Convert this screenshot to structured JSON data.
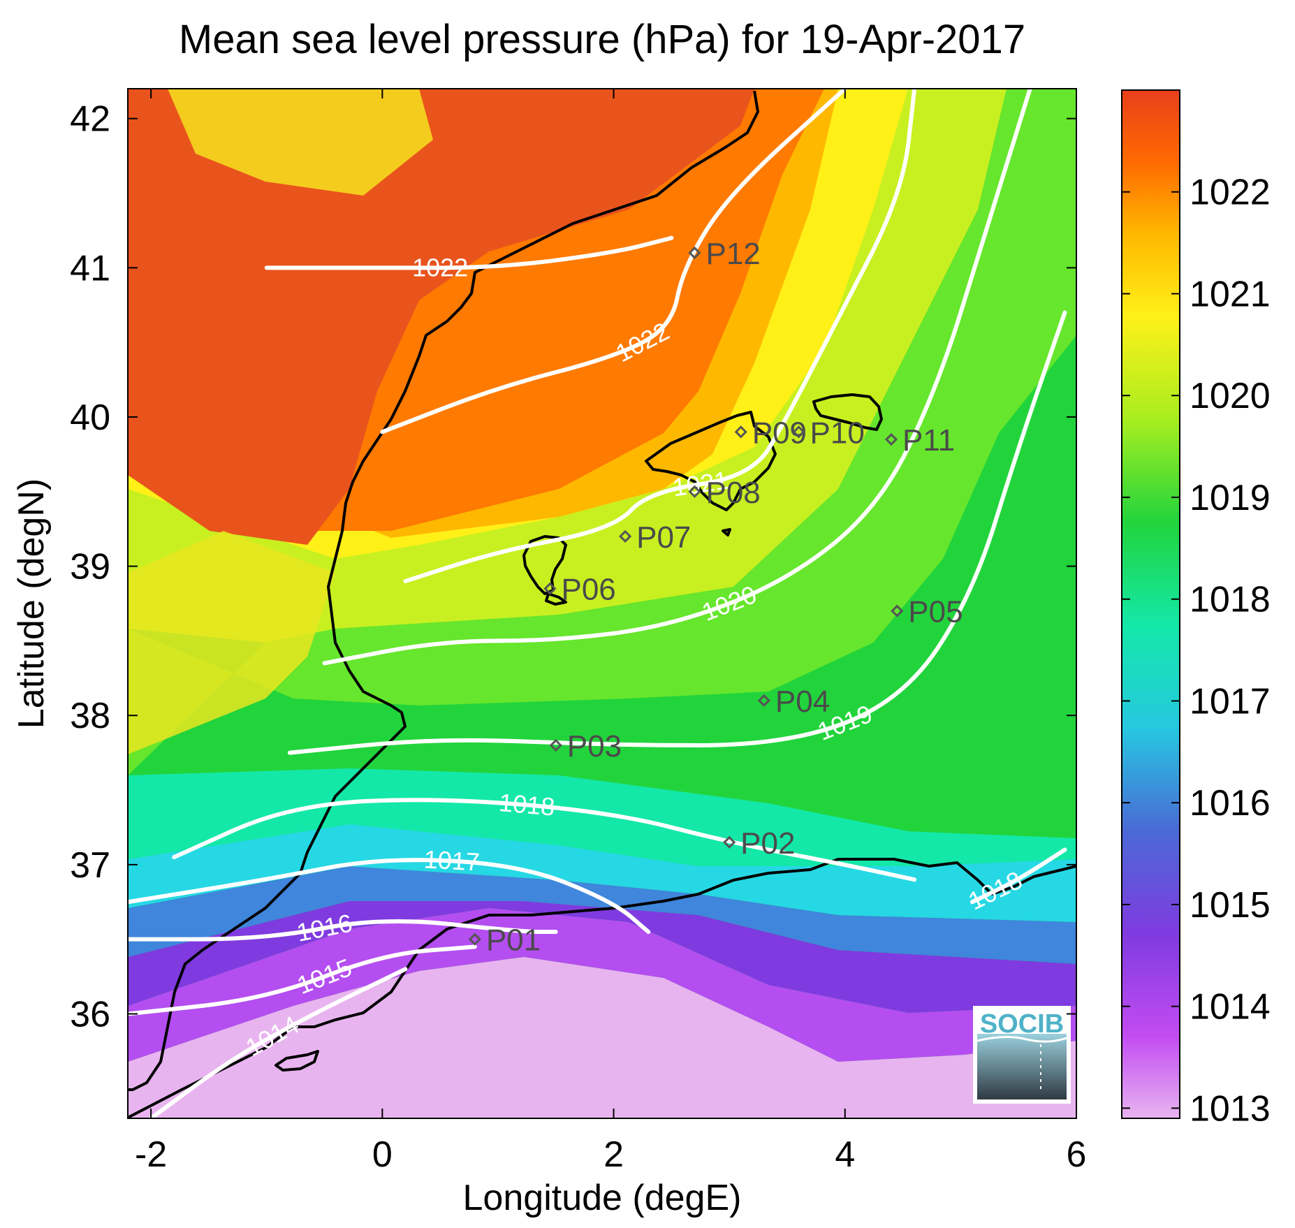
{
  "chart_data": {
    "type": "heatmap",
    "title": "Mean sea level pressure (hPa) for 19-Apr-2017",
    "xlabel": "Longitude (degE)",
    "ylabel": "Latitude (degN)",
    "xlim": [
      -2.2,
      6.0
    ],
    "ylim": [
      35.3,
      42.2
    ],
    "xticks": [
      -2,
      0,
      2,
      4,
      6
    ],
    "yticks": [
      36,
      37,
      38,
      39,
      40,
      41,
      42
    ],
    "colorbar": {
      "range": [
        1012.9,
        1023.0
      ],
      "ticks": [
        1013,
        1014,
        1015,
        1016,
        1017,
        1018,
        1019,
        1020,
        1021,
        1022
      ],
      "colors": [
        "#e8b4ef",
        "#c24cf2",
        "#7f3be0",
        "#4a6ad6",
        "#26c8e0",
        "#14e8a8",
        "#22d43c",
        "#a8ee20",
        "#fff018",
        "#ffb800",
        "#ff6a00",
        "#e8401c"
      ]
    },
    "contours": [
      {
        "level": 1022,
        "label": "1022",
        "points": [
          [
            -1.0,
            41.0
          ],
          [
            0.0,
            41.0
          ],
          [
            1.0,
            41.0
          ],
          [
            2.0,
            41.1
          ],
          [
            2.5,
            41.2
          ]
        ]
      },
      {
        "level": 1022,
        "label": "1022",
        "points": [
          [
            0.0,
            39.9
          ],
          [
            1.0,
            40.2
          ],
          [
            2.0,
            40.4
          ],
          [
            2.5,
            40.6
          ],
          [
            2.6,
            41.0
          ],
          [
            3.0,
            41.5
          ],
          [
            4.0,
            42.2
          ]
        ]
      },
      {
        "level": 1021,
        "label": "1021",
        "points": [
          [
            0.2,
            38.9
          ],
          [
            1.0,
            39.1
          ],
          [
            2.0,
            39.25
          ],
          [
            2.3,
            39.5
          ],
          [
            3.2,
            39.6
          ],
          [
            3.5,
            40.0
          ],
          [
            3.9,
            40.6
          ],
          [
            4.5,
            41.5
          ],
          [
            4.6,
            42.2
          ]
        ]
      },
      {
        "level": 1020,
        "label": "1020",
        "points": [
          [
            -0.5,
            38.35
          ],
          [
            0.5,
            38.5
          ],
          [
            1.5,
            38.5
          ],
          [
            2.5,
            38.6
          ],
          [
            3.5,
            38.9
          ],
          [
            4.3,
            39.4
          ],
          [
            4.8,
            40.2
          ],
          [
            5.2,
            41.2
          ],
          [
            5.6,
            42.2
          ]
        ]
      },
      {
        "level": 1019,
        "label": "1019",
        "points": [
          [
            -0.8,
            37.75
          ],
          [
            0.5,
            37.85
          ],
          [
            2.0,
            37.8
          ],
          [
            3.5,
            37.8
          ],
          [
            4.5,
            38.1
          ],
          [
            5.1,
            38.8
          ],
          [
            5.5,
            39.8
          ],
          [
            5.9,
            40.7
          ]
        ]
      },
      {
        "level": 1018,
        "label": "1018",
        "points": [
          [
            -1.8,
            37.05
          ],
          [
            -0.8,
            37.4
          ],
          [
            0.5,
            37.45
          ],
          [
            2.0,
            37.35
          ],
          [
            3.0,
            37.15
          ],
          [
            4.0,
            37.0
          ],
          [
            4.6,
            36.9
          ]
        ]
      },
      {
        "level": 1018,
        "label": "1018",
        "points": [
          [
            5.1,
            36.75
          ],
          [
            5.5,
            36.9
          ],
          [
            5.9,
            37.1
          ]
        ]
      },
      {
        "level": 1017,
        "label": "1017",
        "points": [
          [
            -2.2,
            36.75
          ],
          [
            -1.0,
            36.9
          ],
          [
            0.0,
            37.05
          ],
          [
            1.2,
            37.0
          ],
          [
            2.0,
            36.75
          ],
          [
            2.3,
            36.55
          ]
        ]
      },
      {
        "level": 1016,
        "label": "1016",
        "points": [
          [
            -2.2,
            36.5
          ],
          [
            -1.0,
            36.5
          ],
          [
            0.0,
            36.65
          ],
          [
            1.2,
            36.55
          ],
          [
            1.5,
            36.55
          ]
        ]
      },
      {
        "level": 1015,
        "label": "1015",
        "points": [
          [
            -2.2,
            36.0
          ],
          [
            -1.0,
            36.1
          ],
          [
            0.0,
            36.4
          ],
          [
            0.8,
            36.45
          ]
        ]
      },
      {
        "level": 1014,
        "label": "1014",
        "points": [
          [
            -2.0,
            35.3
          ],
          [
            -1.3,
            35.7
          ],
          [
            -0.6,
            36.0
          ],
          [
            0.2,
            36.3
          ]
        ]
      }
    ],
    "stations": [
      {
        "label": "P01",
        "lon": 0.8,
        "lat": 36.5
      },
      {
        "label": "P02",
        "lon": 3.0,
        "lat": 37.15
      },
      {
        "label": "P03",
        "lon": 1.5,
        "lat": 37.8
      },
      {
        "label": "P04",
        "lon": 3.3,
        "lat": 38.1
      },
      {
        "label": "P05",
        "lon": 4.45,
        "lat": 38.7
      },
      {
        "label": "P06",
        "lon": 1.45,
        "lat": 38.85
      },
      {
        "label": "P07",
        "lon": 2.1,
        "lat": 39.2
      },
      {
        "label": "P08",
        "lon": 2.7,
        "lat": 39.5
      },
      {
        "label": "P09",
        "lon": 3.1,
        "lat": 39.9
      },
      {
        "label": "P10",
        "lon": 3.6,
        "lat": 39.9
      },
      {
        "label": "P11",
        "lon": 4.4,
        "lat": 39.85
      },
      {
        "label": "P12",
        "lon": 2.7,
        "lat": 41.1
      }
    ]
  },
  "logo": {
    "text": "SOCIB"
  }
}
